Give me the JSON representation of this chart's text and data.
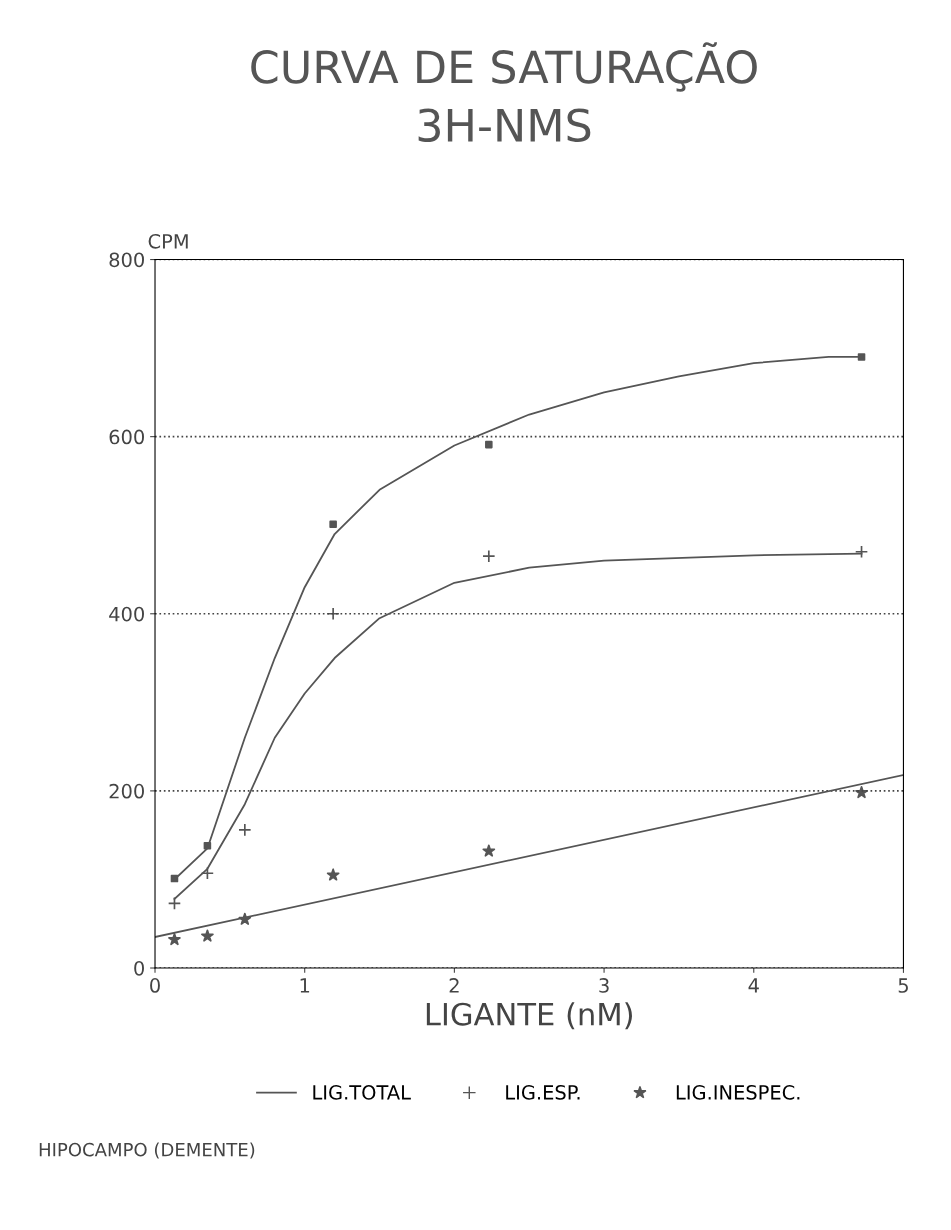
{
  "chart_data": {
    "type": "scatter",
    "title": "CURVA DE SATURAÇÃO",
    "subtitle": "3H-NMS",
    "xlabel": "LIGANTE (nM)",
    "ylabel": "CPM",
    "xlim": [
      0,
      5
    ],
    "xticks": [
      0,
      1,
      2,
      3,
      4,
      5
    ],
    "ylim": [
      0,
      800
    ],
    "yticks": [
      0,
      200,
      400,
      600,
      800
    ],
    "grid": "y",
    "legend": "bottom",
    "annotations": [
      "HIPOCAMPO (DEMENTE)"
    ],
    "series": [
      {
        "name": "LIG.TOTAL",
        "type": "line",
        "color": "#555555",
        "marker": "none",
        "x": [
          0.13,
          0.35,
          0.6,
          0.8,
          1.0,
          1.2,
          1.5,
          2.0,
          2.5,
          3.0,
          3.5,
          4.0,
          4.5,
          4.72
        ],
        "values": [
          100,
          135,
          260,
          350,
          430,
          490,
          540,
          590,
          625,
          650,
          668,
          683,
          690,
          690
        ]
      },
      {
        "color": "#555555",
        "marker": "square",
        "x": [
          0.13,
          0.35,
          1.19,
          2.23,
          4.72
        ],
        "values": [
          101,
          138,
          501,
          591,
          690
        ]
      },
      {
        "type": "line",
        "color": "#555555",
        "marker": "none",
        "x": [
          0.13,
          0.35,
          0.6,
          0.8,
          1.0,
          1.2,
          1.5,
          2.0,
          2.5,
          3.0,
          4.0,
          4.72
        ],
        "values": [
          78,
          112,
          185,
          260,
          310,
          350,
          395,
          435,
          452,
          460,
          466,
          468
        ]
      },
      {
        "name": "LIG.ESP.",
        "color": "#555555",
        "marker": "cross",
        "x": [
          0.13,
          0.35,
          0.6,
          1.19,
          2.23,
          4.72
        ],
        "values": [
          73,
          107,
          156,
          400,
          465,
          470
        ]
      },
      {
        "type": "line",
        "color": "#555555",
        "marker": "none",
        "x": [
          0,
          5
        ],
        "values": [
          35,
          218
        ]
      },
      {
        "name": "LIG.INESPEC.",
        "color": "#555555",
        "marker": "star",
        "x": [
          0.13,
          0.35,
          0.6,
          1.19,
          2.23,
          4.72
        ],
        "values": [
          32,
          36,
          55,
          105,
          132,
          198
        ]
      }
    ]
  }
}
